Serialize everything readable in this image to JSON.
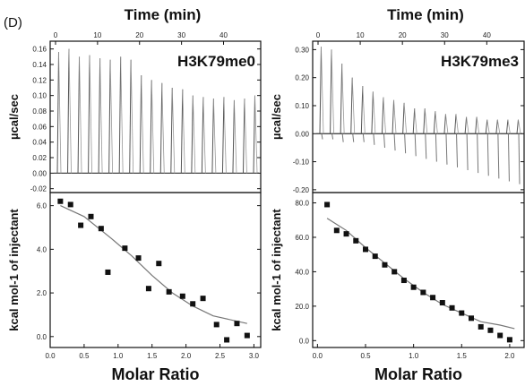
{
  "panel_label": "(D)",
  "chart_data": [
    {
      "type": "line",
      "title": "H3K79me0",
      "top_axis_label": "Time (min)",
      "top_axis_ticks": [
        0,
        10,
        20,
        30,
        40
      ],
      "top_axis_range": [
        0,
        48
      ],
      "ylabel": "µcal/sec",
      "ylim": [
        -0.025,
        0.17
      ],
      "yticks": [
        -0.02,
        0.0,
        0.02,
        0.04,
        0.06,
        0.08,
        0.1,
        0.12,
        0.14,
        0.16
      ],
      "injection_count": 20,
      "injection_peaks": [
        0.156,
        0.16,
        0.15,
        0.152,
        0.148,
        0.146,
        0.15,
        0.146,
        0.126,
        0.12,
        0.116,
        0.11,
        0.108,
        0.1,
        0.098,
        0.096,
        0.098,
        0.094,
        0.096,
        0.1
      ],
      "baseline": 0.0,
      "grid": false
    },
    {
      "type": "scatter",
      "xlabel": "Molar Ratio",
      "ylabel": "kcal mol-1 of injectant",
      "xlim": [
        0,
        3.1
      ],
      "ylim": [
        -0.5,
        6.6
      ],
      "xticks": [
        0.0,
        0.5,
        1.0,
        1.5,
        2.0,
        2.5,
        3.0
      ],
      "yticks": [
        0.0,
        2.0,
        4.0,
        6.0
      ],
      "points": [
        [
          0.15,
          6.2
        ],
        [
          0.3,
          6.05
        ],
        [
          0.45,
          5.1
        ],
        [
          0.6,
          5.5
        ],
        [
          0.75,
          4.95
        ],
        [
          0.85,
          2.95
        ],
        [
          1.1,
          4.05
        ],
        [
          1.3,
          3.6
        ],
        [
          1.45,
          2.2
        ],
        [
          1.6,
          3.35
        ],
        [
          1.75,
          2.05
        ],
        [
          1.95,
          1.85
        ],
        [
          2.1,
          1.5
        ],
        [
          2.25,
          1.75
        ],
        [
          2.45,
          0.55
        ],
        [
          2.6,
          -0.15
        ],
        [
          2.75,
          0.6
        ],
        [
          2.9,
          0.05
        ]
      ],
      "fit": [
        [
          0.15,
          6.0
        ],
        [
          0.5,
          5.5
        ],
        [
          0.9,
          4.5
        ],
        [
          1.2,
          3.7
        ],
        [
          1.5,
          2.8
        ],
        [
          1.8,
          2.0
        ],
        [
          2.1,
          1.4
        ],
        [
          2.4,
          0.95
        ],
        [
          2.9,
          0.6
        ]
      ],
      "grid": false
    },
    {
      "type": "line",
      "title": "H3K79me3",
      "top_axis_label": "Time (min)",
      "top_axis_ticks": [
        0,
        10,
        20,
        30,
        40
      ],
      "top_axis_range": [
        0,
        48
      ],
      "ylabel": "µcal/sec",
      "ylim": [
        -0.21,
        0.33
      ],
      "yticks": [
        -0.2,
        -0.1,
        0.0,
        0.1,
        0.2,
        0.3
      ],
      "injection_count": 20,
      "injection_peaks": [
        0.31,
        0.3,
        0.25,
        0.2,
        0.17,
        0.15,
        0.13,
        0.12,
        0.11,
        0.09,
        0.09,
        0.08,
        0.07,
        0.07,
        0.06,
        0.06,
        0.05,
        0.05,
        0.05,
        0.05
      ],
      "injection_troughs": [
        -0.02,
        -0.02,
        -0.03,
        -0.03,
        -0.03,
        -0.04,
        -0.05,
        -0.06,
        -0.07,
        -0.08,
        -0.09,
        -0.1,
        -0.11,
        -0.12,
        -0.13,
        -0.14,
        -0.15,
        -0.16,
        -0.17,
        -0.18
      ],
      "baseline": 0.0,
      "grid": false
    },
    {
      "type": "scatter",
      "xlabel": "Molar Ratio",
      "ylabel": "kcal mol-1 of injectant",
      "xlim": [
        -0.05,
        2.15
      ],
      "ylim": [
        -4,
        86
      ],
      "xticks": [
        0.0,
        0.5,
        1.0,
        1.5,
        2.0
      ],
      "yticks": [
        0.0,
        20.0,
        40.0,
        60.0,
        80.0
      ],
      "points": [
        [
          0.1,
          79
        ],
        [
          0.2,
          64
        ],
        [
          0.3,
          62
        ],
        [
          0.4,
          58
        ],
        [
          0.5,
          53
        ],
        [
          0.6,
          49
        ],
        [
          0.7,
          44
        ],
        [
          0.8,
          40
        ],
        [
          0.9,
          35
        ],
        [
          1.0,
          31
        ],
        [
          1.1,
          28
        ],
        [
          1.2,
          25
        ],
        [
          1.3,
          22
        ],
        [
          1.4,
          19
        ],
        [
          1.5,
          16
        ],
        [
          1.6,
          13
        ],
        [
          1.7,
          8
        ],
        [
          1.8,
          6
        ],
        [
          1.9,
          3
        ],
        [
          2.0,
          0.5
        ]
      ],
      "fit": [
        [
          0.1,
          71
        ],
        [
          0.3,
          64
        ],
        [
          0.5,
          54
        ],
        [
          0.7,
          45
        ],
        [
          0.9,
          36
        ],
        [
          1.1,
          28
        ],
        [
          1.3,
          21
        ],
        [
          1.5,
          16
        ],
        [
          1.7,
          11
        ],
        [
          1.9,
          9
        ],
        [
          2.05,
          7
        ]
      ],
      "grid": false
    }
  ]
}
